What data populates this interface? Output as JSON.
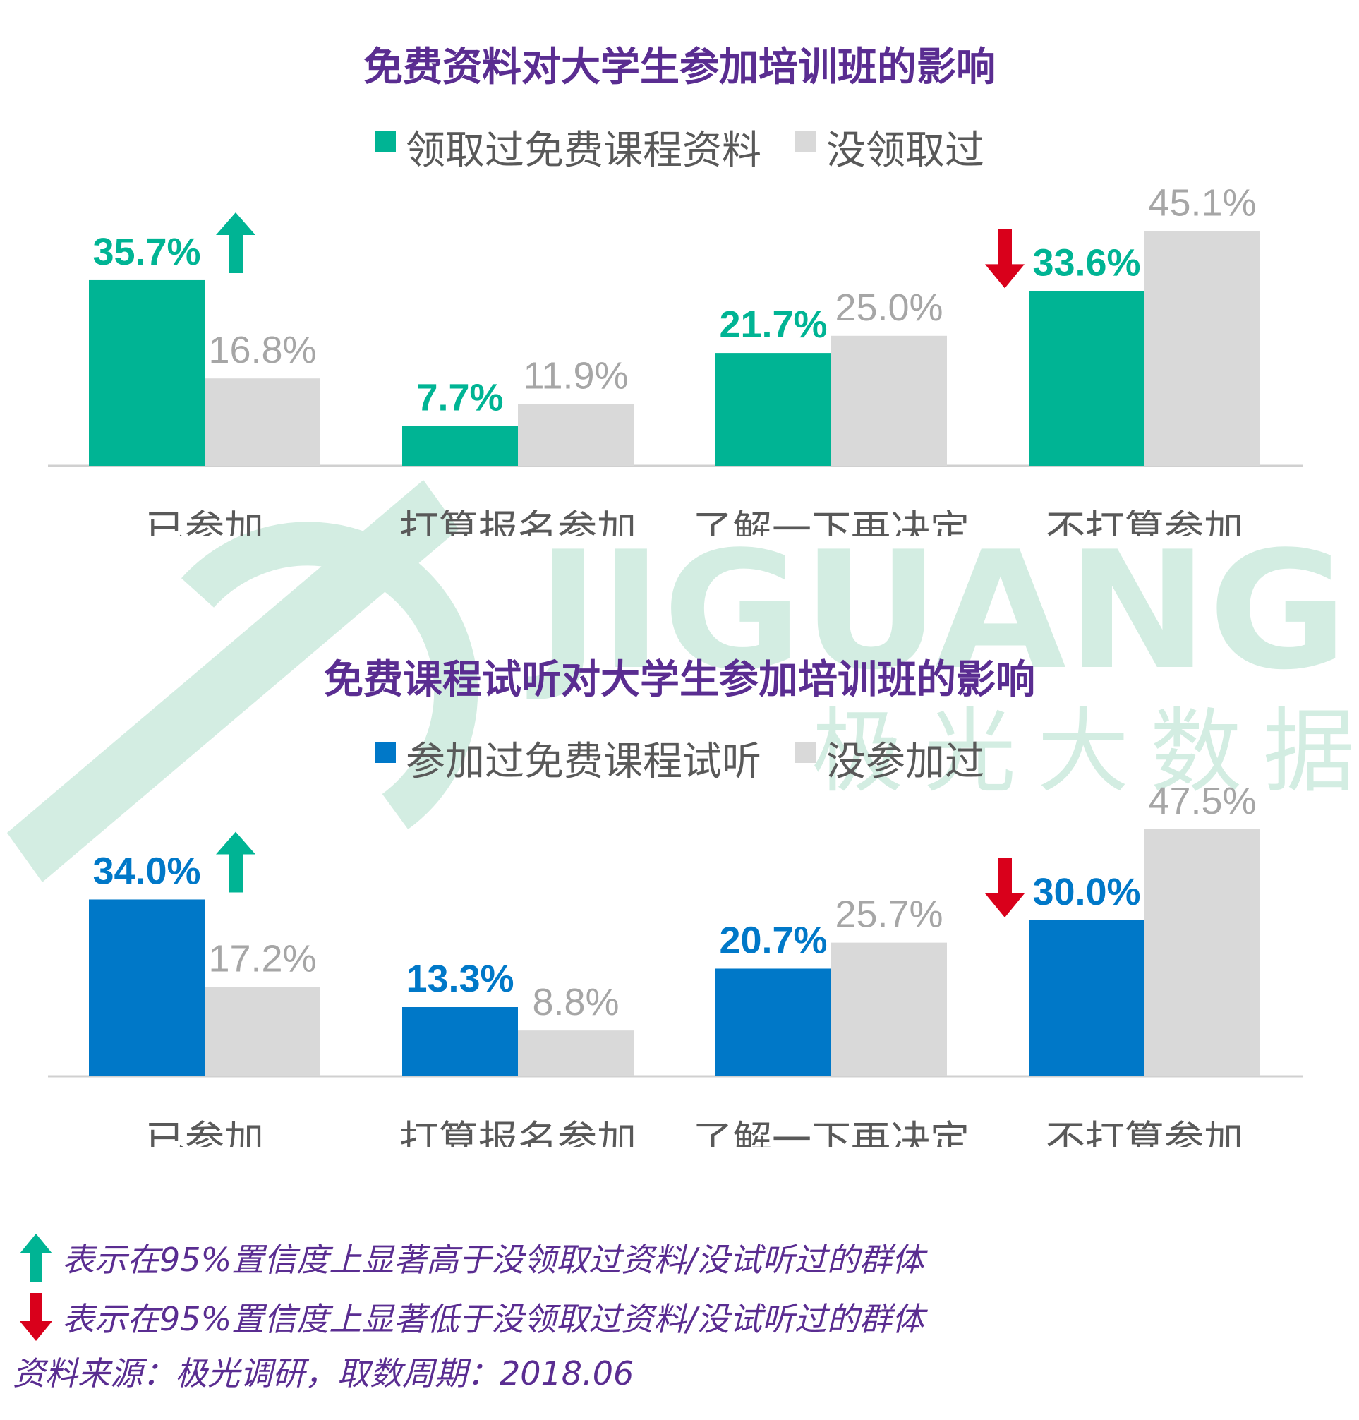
{
  "watermark": {
    "brand": "JIGUANG",
    "brand_cn": "极光大数据"
  },
  "colors": {
    "green": "#00b494",
    "blue": "#0078c8",
    "gray_bar": "#d9d9d9",
    "gray_label": "#a6a6a6",
    "title": "#5a2d91",
    "up_arrow": "#00b494",
    "down_arrow": "#d9001b"
  },
  "chart_data": [
    {
      "type": "bar",
      "title": "免费资料对大学生参加培训班的影响",
      "categories": [
        "已参加",
        "打算报名参加",
        "了解一下再决定",
        "不打算参加"
      ],
      "series": [
        {
          "name": "领取过免费课程资料",
          "values": [
            35.7,
            7.7,
            21.7,
            33.6
          ],
          "labels": [
            "35.7%",
            "7.7%",
            "21.7%",
            "33.6%"
          ]
        },
        {
          "name": "没领取过",
          "values": [
            16.8,
            11.9,
            25.0,
            45.1
          ],
          "labels": [
            "16.8%",
            "11.9%",
            "25.0%",
            "45.1%"
          ]
        }
      ],
      "significance": [
        "up",
        null,
        null,
        "down"
      ],
      "ylim": [
        0,
        47.5
      ],
      "legend": "top-center",
      "grid": false
    },
    {
      "type": "bar",
      "title": "免费课程试听对大学生参加培训班的影响",
      "categories": [
        "已参加",
        "打算报名参加",
        "了解一下再决定",
        "不打算参加"
      ],
      "series": [
        {
          "name": "参加过免费课程试听",
          "values": [
            34.0,
            13.3,
            20.7,
            30.0
          ],
          "labels": [
            "34.0%",
            "13.3%",
            "20.7%",
            "30.0%"
          ]
        },
        {
          "name": "没参加过",
          "values": [
            17.2,
            8.8,
            25.7,
            47.5
          ],
          "labels": [
            "17.2%",
            "8.8%",
            "25.7%",
            "47.5%"
          ]
        }
      ],
      "significance": [
        "up",
        null,
        null,
        "down"
      ],
      "ylim": [
        0,
        47.5
      ],
      "legend": "top-center",
      "grid": false
    }
  ],
  "footnotes": {
    "up": "表示在95%置信度上显著高于没领取过资料/没试听过的群体",
    "down": "表示在95%置信度上显著低于没领取过资料/没试听过的群体"
  },
  "source": "资料来源：极光调研，取数周期：2018.06"
}
